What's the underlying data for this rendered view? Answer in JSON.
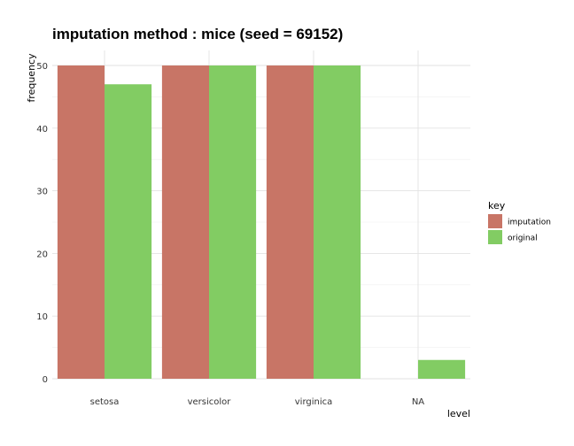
{
  "chart_data": {
    "type": "bar",
    "title": "imputation method : mice (seed = 69152)",
    "xlabel": "level",
    "ylabel": "frequency",
    "categories": [
      "setosa",
      "versicolor",
      "virginica",
      "NA"
    ],
    "series": [
      {
        "name": "imputation",
        "values": [
          50,
          50,
          50,
          0
        ],
        "color": "#c87566"
      },
      {
        "name": "original",
        "values": [
          47,
          50,
          50,
          3
        ],
        "color": "#82cc63"
      }
    ],
    "ylim": [
      0,
      50
    ],
    "yticks": [
      0,
      10,
      20,
      30,
      40,
      50
    ],
    "grid": true,
    "legend": {
      "title": "key",
      "position": "right"
    }
  }
}
